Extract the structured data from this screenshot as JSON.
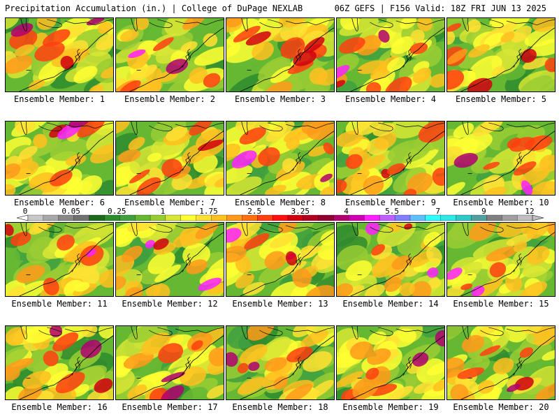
{
  "header": {
    "left": "Precipitation Accumulation (in.) | College of DuPage NEXLAB",
    "right": "06Z GEFS | F156 Valid: 18Z FRI JUN 13 2025"
  },
  "caption_prefix": "Ensemble Member: ",
  "members": [
    1,
    2,
    3,
    4,
    5,
    6,
    7,
    8,
    9,
    10,
    11,
    12,
    13,
    14,
    15,
    16,
    17,
    18,
    19,
    20
  ],
  "colorbar": {
    "labels": [
      "0",
      "0.05",
      "0.25",
      "1",
      "1.75",
      "2.5",
      "3.25",
      "4",
      "5.5",
      "7",
      "9",
      "12"
    ],
    "colors": [
      "#c8c8c8",
      "#a8a8a8",
      "#888888",
      "#707070",
      "#1c6b1c",
      "#2e8b2e",
      "#40a040",
      "#66b833",
      "#99cc33",
      "#d8e635",
      "#ffff33",
      "#ffe033",
      "#ffc020",
      "#ff9a1a",
      "#ff7010",
      "#ff4010",
      "#ff1010",
      "#d00010",
      "#b00020",
      "#900030",
      "#b00070",
      "#d000b0",
      "#ff20ff",
      "#c060ff",
      "#8080ff",
      "#60c0ff",
      "#30ffff",
      "#30e8e8",
      "#30c8c8",
      "#50a0a0",
      "#808080",
      "#a0a0a0",
      "#c0c0c0"
    ]
  }
}
